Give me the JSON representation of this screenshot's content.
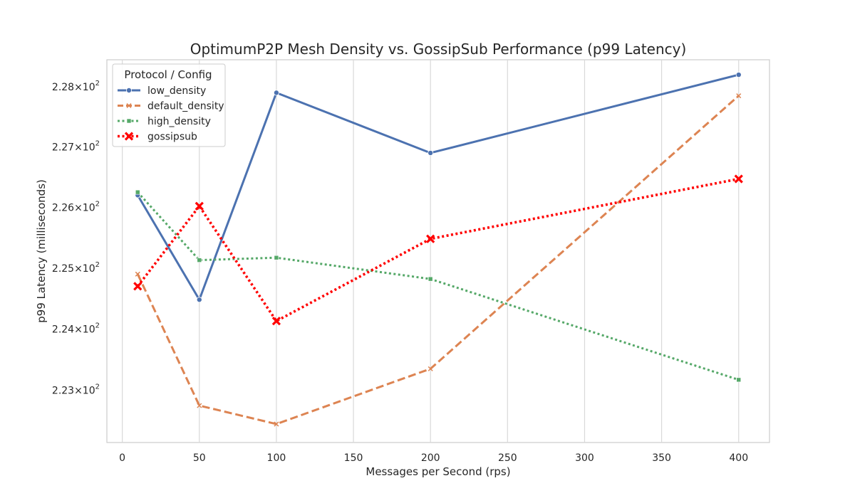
{
  "chart_data": {
    "type": "line",
    "title": "OptimumP2P Mesh Density vs. GossipSub Performance (p99 Latency)",
    "xlabel": "Messages per Second (rps)",
    "ylabel": "p99 Latency (milliseconds)",
    "x": [
      10,
      50,
      100,
      200,
      400
    ],
    "xlim": [
      -10,
      420
    ],
    "ylim": [
      222.15,
      228.45
    ],
    "y_scale": "log",
    "grid": "vertical",
    "xticks": [
      0,
      50,
      100,
      150,
      200,
      250,
      300,
      350,
      400
    ],
    "yticks": [
      {
        "value": 223,
        "mantissa": "2.23",
        "base": "10",
        "exp": "2"
      },
      {
        "value": 224,
        "mantissa": "2.24",
        "base": "10",
        "exp": "2"
      },
      {
        "value": 225,
        "mantissa": "2.25",
        "base": "10",
        "exp": "2"
      },
      {
        "value": 226,
        "mantissa": "2.26",
        "base": "10",
        "exp": "2"
      },
      {
        "value": 227,
        "mantissa": "2.27",
        "base": "10",
        "exp": "2"
      },
      {
        "value": 228,
        "mantissa": "2.28",
        "base": "10",
        "exp": "2"
      }
    ],
    "legend": {
      "title": "Protocol / Config",
      "placement": "top-left"
    },
    "series": [
      {
        "name": "low_density",
        "color": "#4c72b0",
        "marker": "circle",
        "dash": "solid",
        "values": [
          226.2,
          224.48,
          227.9,
          226.9,
          228.2
        ]
      },
      {
        "name": "default_density",
        "color": "#dd8452",
        "marker": "x",
        "dash": "dashed",
        "values": [
          224.9,
          222.75,
          222.45,
          223.35,
          227.85
        ]
      },
      {
        "name": "high_density",
        "color": "#55a868",
        "marker": "square",
        "dash": "dotted",
        "values": [
          226.25,
          225.13,
          225.17,
          224.82,
          223.17
        ]
      },
      {
        "name": "gossipsub",
        "color": "#ff0000",
        "marker": "X",
        "dash": "dotted",
        "values": [
          224.7,
          226.02,
          224.13,
          225.48,
          226.47
        ]
      }
    ]
  }
}
